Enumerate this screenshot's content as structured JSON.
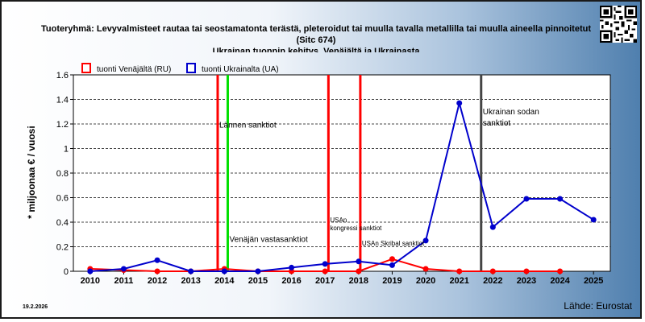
{
  "title_line1": "Tuoteryhmä: Levyvalmisteet rautaa tai seostamatonta terästä, pleteroidut tai muulla tavalla metallilla tai muulla aineella pinnoitetut",
  "title_line2": "(Sitc 674)",
  "title_line3": "Ukrainan tuonnin kehitys, Venäjältä ja Ukrainasta",
  "date": "19.2.2026",
  "source": "Lähde: Eurostat",
  "colors": {
    "ru": "#ff0000",
    "ua": "#0000cc",
    "green": "#00e000",
    "gray": "#444444",
    "grid": "#444444"
  },
  "chart_data": {
    "type": "line",
    "ylabel": "* miljoonaa € / vuosi",
    "xlabel": "",
    "ylim": [
      0,
      1.6
    ],
    "y_ticks": [
      0,
      0.2,
      0.4,
      0.6,
      0.8,
      1,
      1.2,
      1.4,
      1.6
    ],
    "x": [
      2010,
      2011,
      2012,
      2013,
      2014,
      2015,
      2016,
      2017,
      2018,
      2019,
      2020,
      2021,
      2022,
      2023,
      2024,
      2025
    ],
    "grid": "horizontal dashed",
    "legend_position": "top-left",
    "series": [
      {
        "name": "tuonti Venäjältä (RU)",
        "color": "#ff0000",
        "values": [
          0.02,
          0.01,
          0,
          0,
          0.02,
          0,
          0,
          0,
          0,
          0.1,
          0.02,
          0,
          0,
          0,
          0,
          null
        ]
      },
      {
        "name": "tuonti Ukrainalta (UA)",
        "color": "#0000cc",
        "values": [
          0,
          0.02,
          0.09,
          0,
          0,
          0,
          0.03,
          0.06,
          0.08,
          0.05,
          0.25,
          1.37,
          0.36,
          0.59,
          0.59,
          0.42
        ]
      }
    ],
    "events": [
      {
        "x": 2013.8,
        "color": "#ff0000",
        "label": "Lännen sanktiot",
        "label_y": 1.17,
        "label_size": "normal"
      },
      {
        "x": 2014.1,
        "color": "#00e000",
        "label": "Venäjän vastasanktiot",
        "label_y": 0.24,
        "label_size": "normal"
      },
      {
        "x": 2017.1,
        "color": "#ff0000",
        "label": "USAn kongressi sanktiot",
        "label_lines": [
          "USAn",
          "kongressi sanktiot"
        ],
        "label_y": 0.4,
        "label_size": "small"
      },
      {
        "x": 2018.05,
        "color": "#ff0000",
        "label": "USAn Skribal sanktiot",
        "label_y": 0.21,
        "label_size": "small"
      },
      {
        "x": 2021.65,
        "color": "#444444",
        "label": "Ukrainan sodan sanktiot",
        "label_lines": [
          "Ukrainan sodan",
          "sanktiot"
        ],
        "label_y": 1.28,
        "label_size": "normal"
      }
    ]
  }
}
